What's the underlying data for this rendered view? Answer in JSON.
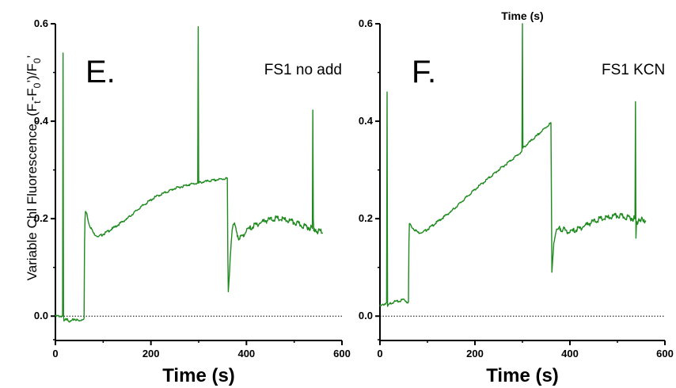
{
  "chart_data": [
    {
      "type": "line",
      "panel": "E.",
      "title": "FS1 no add",
      "xlabel": "Time (s)",
      "ylabel_parts": [
        "Variable Chl Fluorescence, (F",
        "t",
        "-F",
        "0",
        "’)/F",
        "0",
        "’"
      ],
      "xlim": [
        0,
        600
      ],
      "ylim": [
        -0.05,
        0.6
      ],
      "xticks": [
        0,
        200,
        400,
        600
      ],
      "yticks": [
        0.0,
        0.2,
        0.4,
        0.6
      ],
      "ytick_labels": [
        "0.0",
        "0.2",
        "0.4",
        "0.6"
      ],
      "baseline": 0.0,
      "color": "#1f8a1f",
      "series": [
        {
          "x": [
            0,
            15,
            16,
            17,
            18,
            20,
            25,
            30,
            40,
            50,
            60,
            61,
            62,
            63,
            66,
            70,
            80,
            90,
            100,
            120,
            150,
            180,
            210,
            250,
            280,
            298,
            299,
            300,
            301,
            320,
            340,
            360,
            361,
            362,
            364,
            366,
            368,
            370,
            374,
            378,
            382,
            386,
            392,
            400,
            420,
            440,
            460,
            480,
            500,
            520,
            538,
            539,
            540,
            541,
            542,
            545,
            550,
            555,
            560
          ],
          "y": [
            0.0,
            0.0,
            0.54,
            0.0,
            -0.01,
            -0.008,
            -0.005,
            -0.012,
            -0.006,
            -0.01,
            -0.004,
            0.15,
            0.2,
            0.215,
            0.21,
            0.19,
            0.17,
            0.163,
            0.168,
            0.18,
            0.2,
            0.225,
            0.245,
            0.262,
            0.27,
            0.273,
            0.594,
            0.273,
            0.274,
            0.277,
            0.28,
            0.283,
            0.13,
            0.05,
            0.08,
            0.12,
            0.15,
            0.176,
            0.188,
            0.18,
            0.165,
            0.158,
            0.165,
            0.175,
            0.188,
            0.196,
            0.2,
            0.198,
            0.192,
            0.185,
            0.18,
            0.423,
            0.2,
            0.175,
            0.18,
            0.178,
            0.172,
            0.176,
            0.17
          ]
        }
      ]
    },
    {
      "type": "line",
      "panel": "F.",
      "title": "FS1 KCN",
      "xlabel": "Time (s)",
      "annotation": "Time (s)",
      "xlim": [
        0,
        600
      ],
      "ylim": [
        -0.05,
        0.6
      ],
      "xticks": [
        0,
        200,
        400,
        600
      ],
      "yticks": [
        0.0,
        0.2,
        0.4,
        0.6
      ],
      "ytick_labels": [
        "0.0",
        "0.2",
        "0.4",
        "0.6"
      ],
      "baseline": 0.0,
      "color": "#1f8a1f",
      "series": [
        {
          "x": [
            0,
            10,
            14,
            15,
            16,
            20,
            30,
            40,
            50,
            58,
            60,
            61,
            62,
            63,
            66,
            70,
            80,
            90,
            100,
            150,
            200,
            250,
            298,
            299,
            300,
            301,
            330,
            358,
            360,
            361,
            362,
            364,
            366,
            370,
            375,
            380,
            390,
            400,
            420,
            440,
            460,
            480,
            500,
            520,
            536,
            537,
            538,
            539,
            540,
            545,
            550,
            555,
            560
          ],
          "y": [
            0.02,
            0.025,
            0.028,
            0.46,
            0.02,
            0.025,
            0.03,
            0.03,
            0.035,
            0.028,
            0.03,
            0.15,
            0.19,
            0.19,
            0.185,
            0.18,
            0.172,
            0.172,
            0.178,
            0.215,
            0.26,
            0.3,
            0.337,
            0.34,
            0.6,
            0.345,
            0.37,
            0.395,
            0.397,
            0.25,
            0.09,
            0.12,
            0.15,
            0.17,
            0.178,
            0.18,
            0.176,
            0.172,
            0.18,
            0.19,
            0.198,
            0.202,
            0.206,
            0.203,
            0.2,
            0.2,
            0.44,
            0.16,
            0.19,
            0.2,
            0.198,
            0.194,
            0.196
          ]
        }
      ]
    }
  ]
}
